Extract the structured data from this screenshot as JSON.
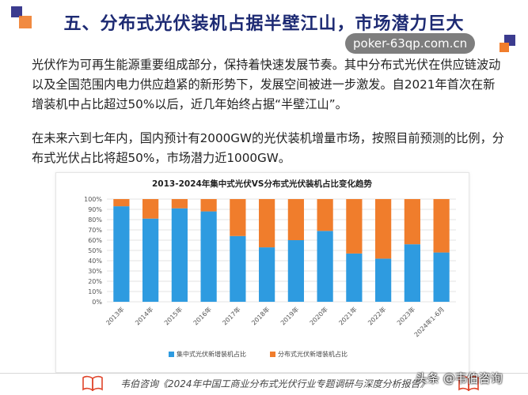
{
  "title": "五、分布式光伏装机占据半壁江山，市场潜力巨大",
  "watermark": "poker-63qp.com.cn",
  "paragraph1": "光伏作为可再生能源重要组成部分，保持着快速发展节奏。其中分布式光伏在供应链波动以及全国范围内电力供应趋紧的新形势下，发展空间被进一步激发。自2021年首次在新增装机中占比超过50%以后，近几年始终占据“半壁江山”。",
  "paragraph2": "在未来六到七年内，国内预计有2000GW的光伏装机增量市场，按照目前预测的比例，分布式光伏占比将超50%，市场潜力近1000GW。",
  "footer": {
    "source": "韦伯咨询《2024年中国工商业分布式光伏行业专题调研与深度分析报告》",
    "badge": "头条 @韦伯咨询"
  },
  "colors": {
    "title": "#1d2a73",
    "centralized": "#2e9be0",
    "distributed": "#f07d2c",
    "deco_blue": "#3b3b8f",
    "deco_orange": "#f07d2c"
  },
  "chart_data": {
    "type": "bar",
    "stacked": true,
    "percent": true,
    "title": "2013-2024年集中式光伏VS分布式光伏装机占比变化趋势",
    "categories": [
      "2013年",
      "2014年",
      "2015年",
      "2016年",
      "2017年",
      "2018年",
      "2019年",
      "2020年",
      "2021年",
      "2022年",
      "2023年",
      "2024年1-6月"
    ],
    "series": [
      {
        "name": "集中式光伏新增装机占比",
        "color": "#2e9be0",
        "values": [
          93,
          81,
          91,
          88,
          64,
          53,
          60,
          69,
          47,
          42,
          56,
          48
        ]
      },
      {
        "name": "分布式光伏新增装机占比",
        "color": "#f07d2c",
        "values": [
          7,
          19,
          9,
          12,
          36,
          47,
          40,
          31,
          53,
          58,
          44,
          52
        ]
      }
    ],
    "y_ticks": [
      "0%",
      "10%",
      "20%",
      "30%",
      "40%",
      "50%",
      "60%",
      "70%",
      "80%",
      "90%",
      "100%"
    ],
    "ylim": [
      0,
      100
    ],
    "grid": true,
    "legend_position": "bottom"
  }
}
